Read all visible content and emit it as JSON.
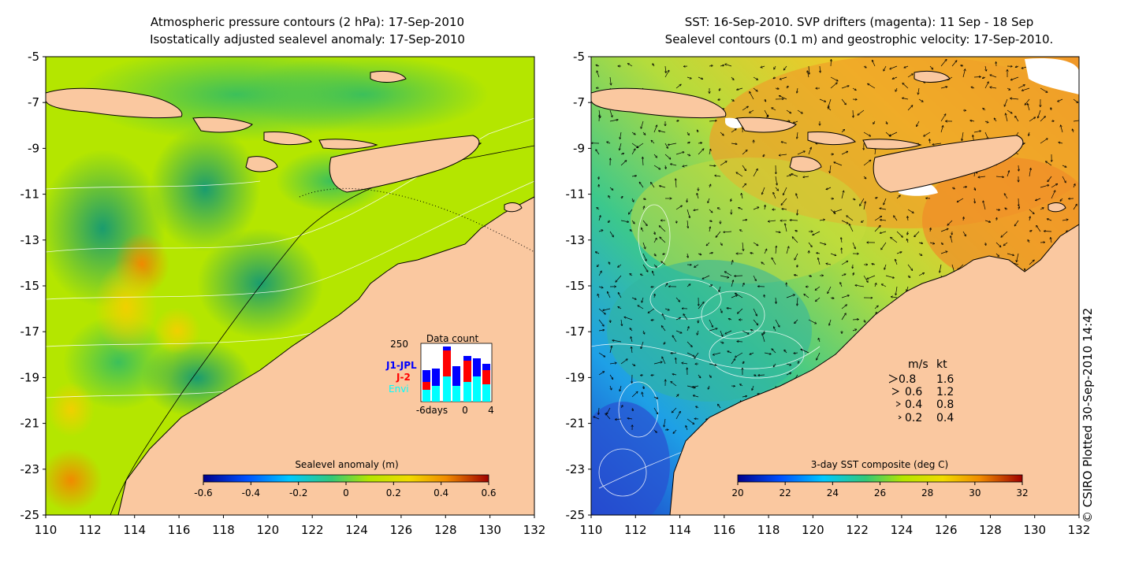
{
  "left_panel": {
    "title_line1": "Atmospheric pressure contours (2 hPa): 17-Sep-2010",
    "title_line2": "Isostatically adjusted sealevel anomaly: 17-Sep-2010",
    "y_ticks": [
      "-5",
      "-7",
      "-9",
      "-11",
      "-13",
      "-15",
      "-17",
      "-19",
      "-21",
      "-23",
      "-25"
    ],
    "x_ticks": [
      "110",
      "112",
      "114",
      "116",
      "118",
      "120",
      "122",
      "124",
      "126",
      "128",
      "130",
      "132"
    ],
    "colorbar_label": "Sealevel anomaly (m)",
    "colorbar_ticks": [
      "-0.6",
      "-0.4",
      "-0.2",
      "0",
      "0.2",
      "0.4",
      "0.6"
    ],
    "inset": {
      "title": "Data count",
      "ymax_label": "250",
      "series": [
        {
          "name": "J1-JPL",
          "color": "#0000ff"
        },
        {
          "name": "J-2",
          "color": "#ff0000"
        },
        {
          "name": "Envi",
          "color": "#00ffff"
        }
      ],
      "x_ticks": [
        "-6days",
        "0",
        "4"
      ]
    }
  },
  "right_panel": {
    "title_line1": "SST: 16-Sep-2010. SVP drifters (magenta): 11 Sep - 18 Sep",
    "title_line2": "Sealevel contours (0.1 m) and geostrophic velocity: 17-Sep-2010.",
    "y_ticks": [
      "-5",
      "-7",
      "-9",
      "-11",
      "-13",
      "-15",
      "-17",
      "-19",
      "-21",
      "-23",
      "-25"
    ],
    "x_ticks": [
      "110",
      "112",
      "114",
      "116",
      "118",
      "120",
      "122",
      "124",
      "126",
      "128",
      "130",
      "132"
    ],
    "colorbar_label": "3-day SST composite (deg C)",
    "colorbar_ticks": [
      "20",
      "22",
      "24",
      "26",
      "28",
      "30",
      "32"
    ],
    "legend": {
      "header_ms": "m/s",
      "header_kt": "kt",
      "rows": [
        {
          "ms": "0.8",
          "kt": "1.6"
        },
        {
          "ms": "0.6",
          "kt": "1.2"
        },
        {
          "ms": "0.4",
          "kt": "0.8"
        },
        {
          "ms": "0.2",
          "kt": "0.4"
        }
      ]
    }
  },
  "copyright": "© CSIRO Plotted 30-Sep-2010 14:42",
  "colors": {
    "land": "#fac8a0",
    "ocean_left": "#b4e600",
    "ocean_right": "#f0b400"
  }
}
